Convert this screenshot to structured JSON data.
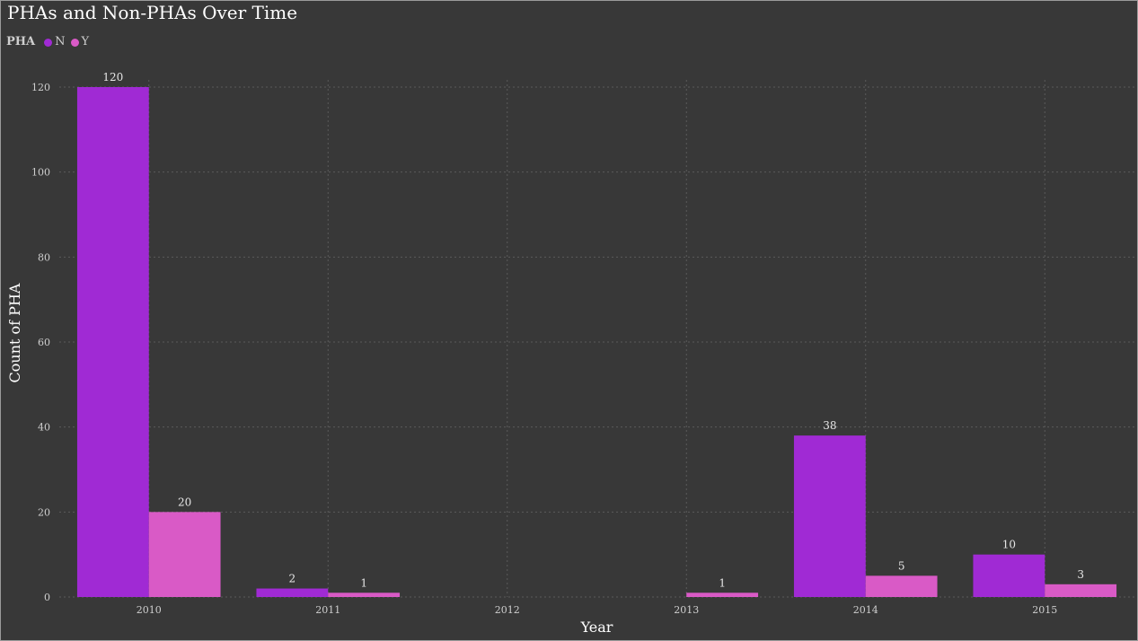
{
  "chart_data": {
    "type": "bar",
    "title": "PHAs and Non-PHAs Over Time",
    "legend_title": "PHA",
    "legend_position": "top-left",
    "xlabel": "Year",
    "ylabel": "Count of PHA",
    "categories": [
      "2010",
      "2011",
      "2012",
      "2013",
      "2014",
      "2015"
    ],
    "ylim": [
      0,
      120
    ],
    "yticks": [
      0,
      20,
      40,
      60,
      80,
      100,
      120
    ],
    "grid": true,
    "series": [
      {
        "name": "N",
        "color": "#a02ad4",
        "values": [
          120,
          2,
          null,
          null,
          38,
          10
        ]
      },
      {
        "name": "Y",
        "color": "#d95ac6",
        "values": [
          20,
          1,
          null,
          1,
          5,
          3
        ]
      }
    ]
  }
}
